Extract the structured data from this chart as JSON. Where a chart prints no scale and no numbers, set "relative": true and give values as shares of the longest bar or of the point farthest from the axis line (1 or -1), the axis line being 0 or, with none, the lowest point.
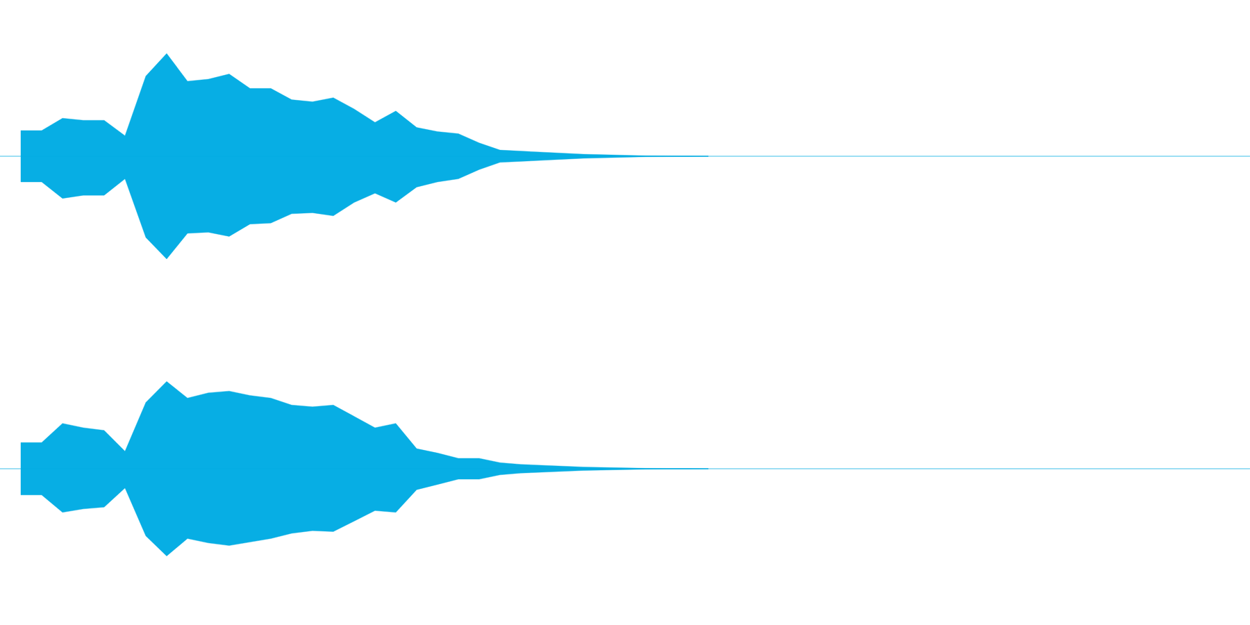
{
  "chart_data": [
    {
      "type": "area",
      "relative": true,
      "ref_lines": [
        {
          "axis": "y",
          "value": 0,
          "color": "#07aee4"
        }
      ],
      "categories": [
        null,
        null,
        null,
        null,
        null,
        null,
        null,
        null,
        null,
        null,
        null,
        null,
        null,
        null,
        null,
        null,
        null,
        null,
        null,
        null,
        null,
        null,
        null,
        null,
        null,
        null,
        null,
        null,
        null,
        null,
        null,
        null,
        null,
        null,
        null,
        null,
        null,
        null,
        null,
        null,
        null,
        null,
        null,
        null,
        null,
        null,
        null,
        null,
        null,
        null,
        null,
        null,
        null,
        null,
        null,
        null,
        null,
        null,
        null,
        null,
        null
      ],
      "series": [
        {
          "color": "#07aee4",
          "values": [
            null,
            0.25,
            0.25,
            0.37,
            0.35,
            0.35,
            0.2,
            0.78,
            1.0,
            0.73,
            0.75,
            0.8,
            0.66,
            0.66,
            0.55,
            0.53,
            0.57,
            0.46,
            0.33,
            0.44,
            0.28,
            0.24,
            0.22,
            0.13,
            0.06,
            0.05,
            0.04,
            0.03,
            0.02,
            0.015,
            0.01,
            0.005,
            0.004,
            0.003,
            0.002,
            null,
            null,
            null,
            null,
            null,
            null,
            null,
            null,
            null,
            null,
            null,
            null,
            null,
            null,
            null,
            null,
            null,
            null,
            null,
            null,
            null,
            null,
            null,
            null,
            null,
            null
          ]
        },
        {
          "color": "#07aee4",
          "values": [
            null,
            -0.25,
            -0.25,
            -0.41,
            -0.38,
            -0.38,
            -0.22,
            -0.79,
            -1.0,
            -0.75,
            -0.74,
            -0.78,
            -0.66,
            -0.65,
            -0.56,
            -0.55,
            -0.58,
            -0.45,
            -0.36,
            -0.45,
            -0.3,
            -0.25,
            -0.22,
            -0.13,
            -0.06,
            -0.05,
            -0.04,
            -0.03,
            -0.02,
            -0.015,
            -0.01,
            -0.005,
            -0.004,
            -0.003,
            -0.002,
            null,
            null,
            null,
            null,
            null,
            null,
            null,
            null,
            null,
            null,
            null,
            null,
            null,
            null,
            null,
            null,
            null,
            null,
            null,
            null,
            null,
            null,
            null,
            null,
            null,
            null
          ]
        }
      ]
    },
    {
      "type": "area",
      "relative": true,
      "ref_lines": [
        {
          "axis": "y",
          "value": 0,
          "color": "#07aee4"
        }
      ],
      "categories": [
        null,
        null,
        null,
        null,
        null,
        null,
        null,
        null,
        null,
        null,
        null,
        null,
        null,
        null,
        null,
        null,
        null,
        null,
        null,
        null,
        null,
        null,
        null,
        null,
        null,
        null,
        null,
        null,
        null,
        null,
        null,
        null,
        null,
        null,
        null,
        null,
        null,
        null,
        null,
        null,
        null,
        null,
        null,
        null,
        null,
        null,
        null,
        null,
        null,
        null,
        null,
        null,
        null,
        null,
        null,
        null,
        null,
        null,
        null,
        null,
        null
      ],
      "series": [
        {
          "color": "#07aee4",
          "values": [
            null,
            0.3,
            0.3,
            0.52,
            0.47,
            0.44,
            0.2,
            0.76,
            1.0,
            0.81,
            0.87,
            0.89,
            0.84,
            0.81,
            0.73,
            0.71,
            0.73,
            0.6,
            0.47,
            0.52,
            0.23,
            0.18,
            0.12,
            0.12,
            0.07,
            0.05,
            0.04,
            0.03,
            0.02,
            0.015,
            0.01,
            0.005,
            0.004,
            0.003,
            0.002,
            null,
            null,
            null,
            null,
            null,
            null,
            null,
            null,
            null,
            null,
            null,
            null,
            null,
            null,
            null,
            null,
            null,
            null,
            null,
            null,
            null,
            null,
            null,
            null,
            null,
            null
          ]
        },
        {
          "color": "#07aee4",
          "values": [
            null,
            -0.3,
            -0.3,
            -0.5,
            -0.46,
            -0.44,
            -0.22,
            -0.77,
            -1.0,
            -0.8,
            -0.85,
            -0.88,
            -0.84,
            -0.8,
            -0.74,
            -0.71,
            -0.72,
            -0.6,
            -0.48,
            -0.5,
            -0.24,
            -0.18,
            -0.12,
            -0.12,
            -0.07,
            -0.05,
            -0.04,
            -0.03,
            -0.02,
            -0.015,
            -0.01,
            -0.005,
            -0.004,
            -0.003,
            -0.002,
            null,
            null,
            null,
            null,
            null,
            null,
            null,
            null,
            null,
            null,
            null,
            null,
            null,
            null,
            null,
            null,
            null,
            null,
            null,
            null,
            null,
            null,
            null,
            null,
            null,
            null
          ]
        }
      ]
    }
  ]
}
